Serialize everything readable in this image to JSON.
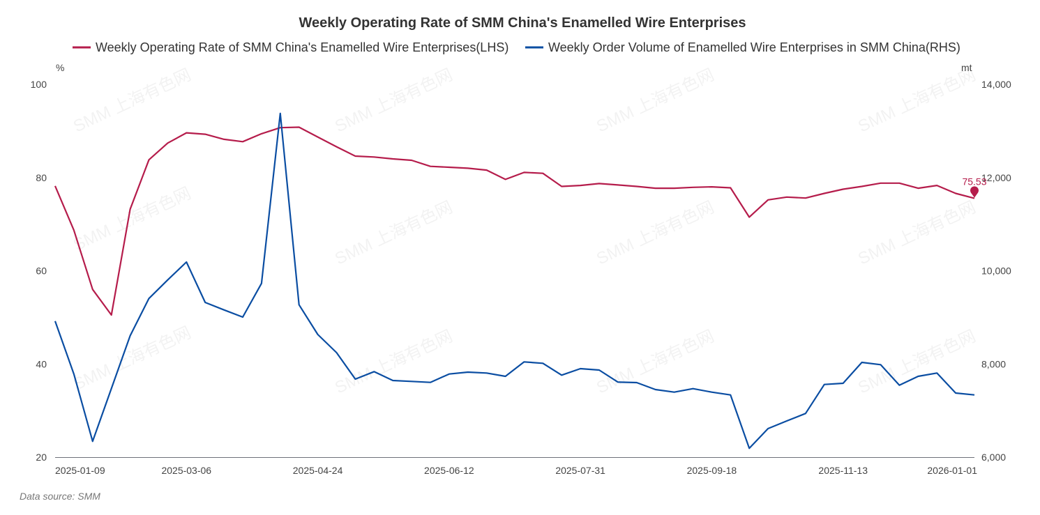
{
  "chart_data": {
    "type": "line",
    "title": "Weekly Operating Rate of SMM China's Enamelled Wire Enterprises",
    "x": [
      "2025-01-09",
      "2025-01-16",
      "2025-01-23",
      "2025-02-06",
      "2025-02-13",
      "2025-02-20",
      "2025-02-27",
      "2025-03-06",
      "2025-03-13",
      "2025-03-20",
      "2025-03-27",
      "2025-04-03",
      "2025-04-10",
      "2025-04-17",
      "2025-04-24",
      "2025-05-01",
      "2025-05-08",
      "2025-05-15",
      "2025-05-22",
      "2025-05-29",
      "2025-06-05",
      "2025-06-12",
      "2025-06-19",
      "2025-06-26",
      "2025-07-03",
      "2025-07-10",
      "2025-07-17",
      "2025-07-24",
      "2025-07-31",
      "2025-08-07",
      "2025-08-14",
      "2025-08-21",
      "2025-08-28",
      "2025-09-04",
      "2025-09-11",
      "2025-09-18",
      "2025-09-25",
      "2025-10-09",
      "2025-10-16",
      "2025-10-23",
      "2025-10-30",
      "2025-11-06",
      "2025-11-13",
      "2025-11-20",
      "2025-11-27",
      "2025-12-04",
      "2025-12-11",
      "2025-12-18",
      "2025-12-25",
      "2026-01-01"
    ],
    "x_tick_labels": [
      "2025-01-09",
      "2025-03-06",
      "2025-04-24",
      "2025-06-12",
      "2025-07-31",
      "2025-09-18",
      "2025-11-13",
      "2026-01-01"
    ],
    "series": [
      {
        "name": "Weekly Operating Rate of SMM China's Enamelled Wire Enterprises(LHS)",
        "axis": "left",
        "color": "#B51C4B",
        "values": [
          78.2,
          68.7,
          56.0,
          50.5,
          73.2,
          83.8,
          87.4,
          89.6,
          89.3,
          88.2,
          87.7,
          89.4,
          90.7,
          90.8,
          88.7,
          86.6,
          84.6,
          84.4,
          84.0,
          83.7,
          82.4,
          82.2,
          82.0,
          81.6,
          79.6,
          81.1,
          80.9,
          78.1,
          78.3,
          78.7,
          78.4,
          78.1,
          77.7,
          77.7,
          77.9,
          78.0,
          77.8,
          71.5,
          75.2,
          75.8,
          75.6,
          76.6,
          77.5,
          78.1,
          78.8,
          78.8,
          77.7,
          78.3,
          76.6,
          75.53
        ]
      },
      {
        "name": "Weekly Order Volume of Enamelled Wire Enterprises in SMM China(RHS)",
        "axis": "right",
        "color": "#0A4DA2",
        "values": [
          8920,
          7784,
          6339,
          7473,
          8606,
          9405,
          9803,
          10187,
          9320,
          9160,
          9006,
          9728,
          13376,
          9270,
          8632,
          8243,
          7675,
          7835,
          7645,
          7625,
          7605,
          7784,
          7824,
          7805,
          7735,
          8044,
          8014,
          7760,
          7899,
          7869,
          7610,
          7600,
          7450,
          7395,
          7470,
          7395,
          7335,
          6190,
          6613,
          6778,
          6937,
          7560,
          7585,
          8034,
          7984,
          7545,
          7735,
          7805,
          7376,
          7335
        ]
      }
    ],
    "y_left": {
      "label": "%",
      "ylim": [
        20,
        100
      ],
      "ticks": [
        "20",
        "40",
        "60",
        "80",
        "100"
      ]
    },
    "y_right": {
      "label": "mt",
      "ylim": [
        6000,
        14000
      ],
      "ticks": [
        "6,000",
        "8,000",
        "10,000",
        "12,000",
        "14,000"
      ]
    },
    "annotation": {
      "series": 0,
      "index": 49,
      "text": "75.53"
    },
    "legend": "top-center",
    "grid": false
  },
  "source": "Data source:  SMM",
  "watermark": "SMM 上海有色网"
}
